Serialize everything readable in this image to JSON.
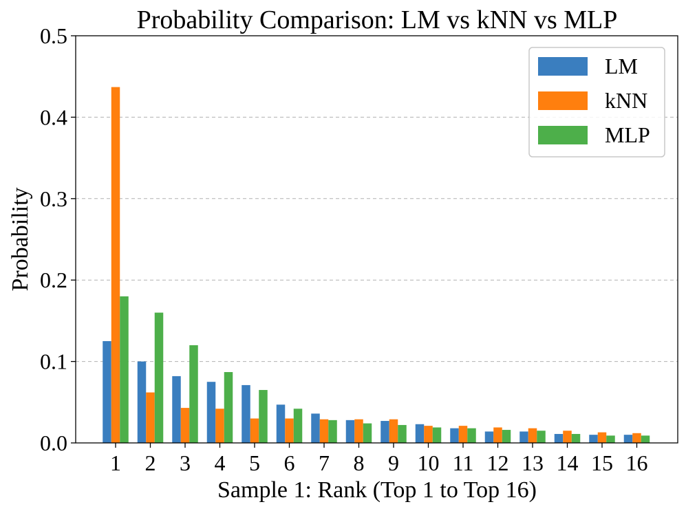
{
  "chart_data": {
    "type": "bar",
    "title": "Probability Comparison: LM vs kNN vs MLP",
    "xlabel": "Sample 1: Rank (Top 1 to Top 16)",
    "ylabel": "Probability",
    "ylim": [
      0,
      0.5
    ],
    "yticks": [
      0.0,
      0.1,
      0.2,
      0.3,
      0.4,
      0.5
    ],
    "ytick_labels": [
      "0.0",
      "0.1",
      "0.2",
      "0.3",
      "0.4",
      "0.5"
    ],
    "grid": "y-dashed",
    "legend_position": "top-right",
    "categories": [
      "1",
      "2",
      "3",
      "4",
      "5",
      "6",
      "7",
      "8",
      "9",
      "10",
      "11",
      "12",
      "13",
      "14",
      "15",
      "16"
    ],
    "series": [
      {
        "name": "LM",
        "color": "#3a7ebf",
        "values": [
          0.125,
          0.1,
          0.082,
          0.075,
          0.071,
          0.047,
          0.036,
          0.028,
          0.027,
          0.023,
          0.018,
          0.014,
          0.014,
          0.011,
          0.01,
          0.01
        ]
      },
      {
        "name": "kNN",
        "color": "#ff7f0e",
        "values": [
          0.437,
          0.062,
          0.043,
          0.042,
          0.03,
          0.03,
          0.029,
          0.029,
          0.029,
          0.021,
          0.021,
          0.019,
          0.018,
          0.015,
          0.013,
          0.012
        ]
      },
      {
        "name": "MLP",
        "color": "#4daf4a",
        "values": [
          0.18,
          0.16,
          0.12,
          0.087,
          0.065,
          0.042,
          0.028,
          0.024,
          0.022,
          0.019,
          0.018,
          0.016,
          0.015,
          0.011,
          0.009,
          0.009
        ]
      }
    ]
  }
}
